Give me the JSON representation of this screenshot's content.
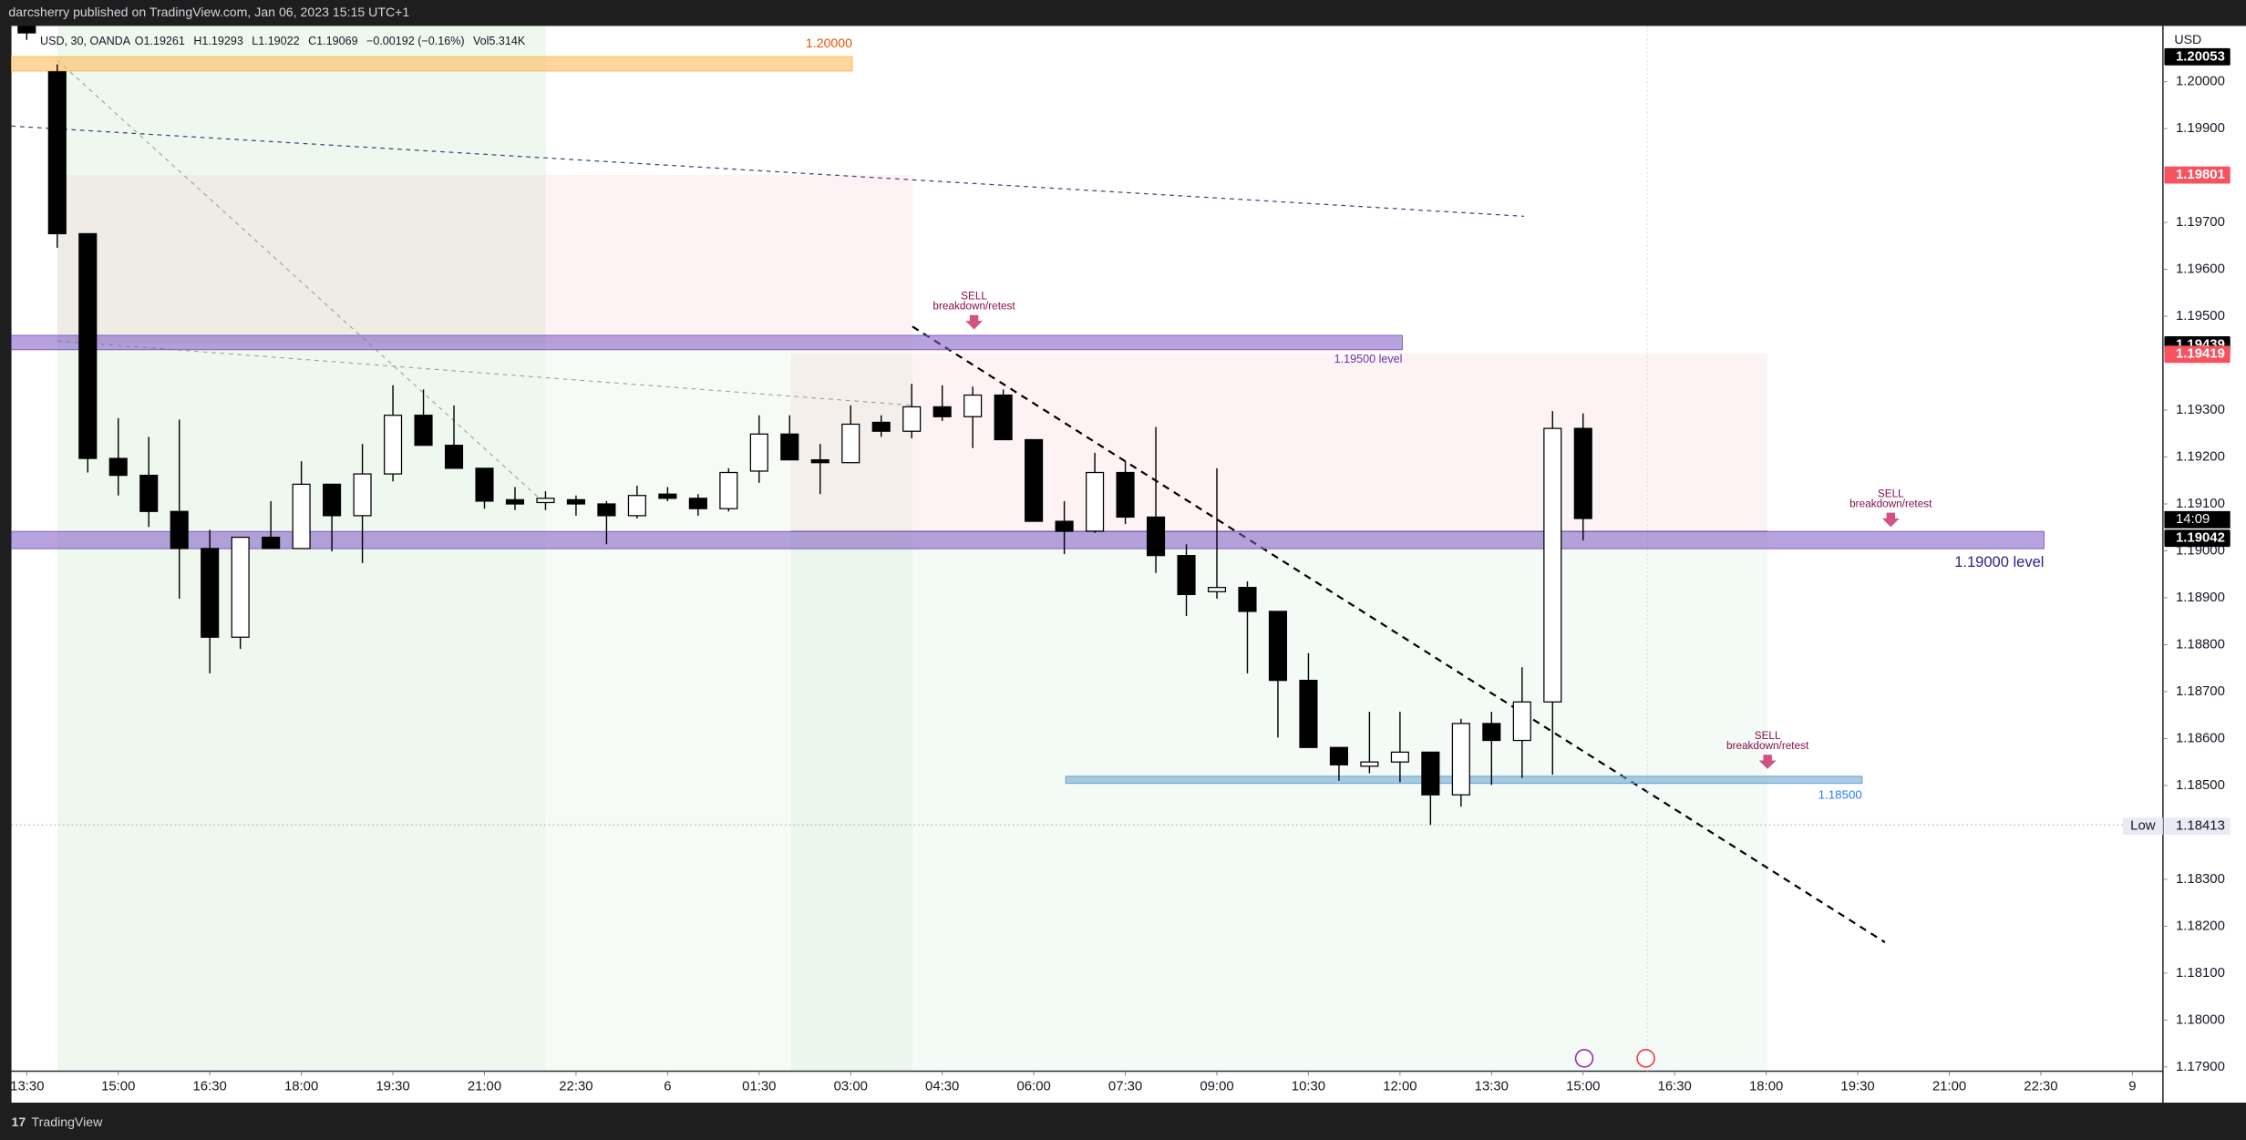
{
  "chart_data": {
    "type": "candlestick",
    "header": "darcsherry published on TradingView.com, Jan 06, 2023 15:15 UTC+1",
    "symbol_info": "USD, 30, OANDA",
    "ohlc_info": [
      "O1.19261",
      "H1.19293",
      "L1.19022",
      "C1.19069",
      "−0.00192 (−0.16%)",
      "Vol5.314K"
    ],
    "axis_unit": "USD",
    "brand": "TradingView",
    "up_color": "#ffffff",
    "down_color": "#000000",
    "grid": false,
    "open": [
      1.2015,
      1.20021,
      1.19676,
      1.19197,
      1.19161,
      1.19084,
      1.19005,
      1.18816,
      1.19029,
      1.19005,
      1.19142,
      1.19075,
      1.19164,
      1.19289,
      1.19225,
      1.19176,
      1.19109,
      1.19103,
      1.19109,
      1.191,
      1.19075,
      1.19121,
      1.19112,
      1.1909,
      1.1917,
      1.19249,
      1.19194,
      1.19188,
      1.19274,
      1.19255,
      1.19307,
      1.19286,
      1.19332,
      1.19237,
      1.19063,
      1.19042,
      1.19167,
      1.19072,
      1.1899,
      1.18913,
      1.18922,
      1.18871,
      1.18724,
      1.18581,
      1.18541,
      1.1855,
      1.18571,
      1.1848,
      1.18632,
      1.18596,
      1.18678,
      1.19261
    ],
    "high": [
      1.2016,
      1.20037,
      1.19676,
      1.19283,
      1.19243,
      1.1928,
      1.19045,
      1.19029,
      1.19106,
      1.19191,
      1.19142,
      1.19228,
      1.19353,
      1.19344,
      1.1931,
      1.19176,
      1.19136,
      1.19127,
      1.19118,
      1.19106,
      1.19139,
      1.19136,
      1.19121,
      1.19176,
      1.19289,
      1.19289,
      1.19228,
      1.1931,
      1.19289,
      1.19356,
      1.19353,
      1.1935,
      1.19344,
      1.19237,
      1.19106,
      1.19209,
      1.19191,
      1.19264,
      1.19014,
      1.19176,
      1.18935,
      1.18871,
      1.18782,
      1.18581,
      1.18657,
      1.18657,
      1.18571,
      1.18642,
      1.18657,
      1.18752,
      1.19298,
      1.19293
    ],
    "low": [
      1.20089,
      1.19646,
      1.19167,
      1.19118,
      1.19051,
      1.18898,
      1.18739,
      1.18791,
      1.19005,
      1.19005,
      1.18999,
      1.18974,
      1.19148,
      1.19225,
      1.19176,
      1.1909,
      1.19087,
      1.19087,
      1.19075,
      1.19014,
      1.19069,
      1.19106,
      1.19075,
      1.19084,
      1.19145,
      1.19194,
      1.19121,
      1.19188,
      1.19243,
      1.1924,
      1.19277,
      1.19219,
      1.19237,
      1.19063,
      1.18993,
      1.19038,
      1.19057,
      1.18953,
      1.18861,
      1.18898,
      1.18739,
      1.18602,
      1.18581,
      1.1851,
      1.18526,
      1.18507,
      1.18416,
      1.18455,
      1.18501,
      1.18516,
      1.18523,
      1.19022
    ],
    "close": [
      1.20104,
      1.19676,
      1.19197,
      1.19161,
      1.19084,
      1.19005,
      1.18816,
      1.19029,
      1.19005,
      1.19142,
      1.19075,
      1.19164,
      1.19289,
      1.19225,
      1.19176,
      1.19106,
      1.191,
      1.19112,
      1.191,
      1.19075,
      1.19118,
      1.19112,
      1.1909,
      1.19167,
      1.19249,
      1.19194,
      1.19188,
      1.1927,
      1.19255,
      1.19307,
      1.19286,
      1.19332,
      1.19237,
      1.19063,
      1.19042,
      1.19167,
      1.19072,
      1.1899,
      1.18907,
      1.18922,
      1.18871,
      1.18724,
      1.18581,
      1.18544,
      1.1855,
      1.18571,
      1.1848,
      1.18632,
      1.18596,
      1.18678,
      1.19261,
      1.19069
    ],
    "xlim": [
      -0.5,
      70
    ],
    "xticks": [
      {
        "value": 0,
        "label": "13:30"
      },
      {
        "value": 3,
        "label": "15:00"
      },
      {
        "value": 6,
        "label": "16:30"
      },
      {
        "value": 9,
        "label": "18:00"
      },
      {
        "value": 12,
        "label": "19:30"
      },
      {
        "value": 15,
        "label": "21:00"
      },
      {
        "value": 18,
        "label": "22:30"
      },
      {
        "value": 21,
        "label": "6"
      },
      {
        "value": 24,
        "label": "01:30"
      },
      {
        "value": 27,
        "label": "03:00"
      },
      {
        "value": 30,
        "label": "04:30"
      },
      {
        "value": 33,
        "label": "06:00"
      },
      {
        "value": 36,
        "label": "07:30"
      },
      {
        "value": 39,
        "label": "09:00"
      },
      {
        "value": 42,
        "label": "10:30"
      },
      {
        "value": 45,
        "label": "12:00"
      },
      {
        "value": 48,
        "label": "13:30"
      },
      {
        "value": 51,
        "label": "15:00"
      },
      {
        "value": 54,
        "label": "16:30"
      },
      {
        "value": 57,
        "label": "18:00"
      },
      {
        "value": 60,
        "label": "19:30"
      },
      {
        "value": 63,
        "label": "21:00"
      },
      {
        "value": 66,
        "label": "22:30"
      },
      {
        "value": 69,
        "label": "9"
      }
    ],
    "ylim": [
      1.17891,
      1.20119
    ],
    "yticks": [
      {
        "value": 1.2,
        "label": "1.20000"
      },
      {
        "value": 1.199,
        "label": "1.19900"
      },
      {
        "value": 1.197,
        "label": "1.19700"
      },
      {
        "value": 1.196,
        "label": "1.19600"
      },
      {
        "value": 1.195,
        "label": "1.19500"
      },
      {
        "value": 1.193,
        "label": "1.19300"
      },
      {
        "value": 1.192,
        "label": "1.19200"
      },
      {
        "value": 1.191,
        "label": "1.19100"
      },
      {
        "value": 1.19,
        "label": "1.19000"
      },
      {
        "value": 1.189,
        "label": "1.18900"
      },
      {
        "value": 1.188,
        "label": "1.18800"
      },
      {
        "value": 1.187,
        "label": "1.18700"
      },
      {
        "value": 1.186,
        "label": "1.18600"
      },
      {
        "value": 1.185,
        "label": "1.18500"
      },
      {
        "value": 1.183,
        "label": "1.18300"
      },
      {
        "value": 1.182,
        "label": "1.18200"
      },
      {
        "value": 1.181,
        "label": "1.18100"
      },
      {
        "value": 1.18,
        "label": "1.18000"
      },
      {
        "value": 1.179,
        "label": "1.17900"
      }
    ],
    "levels": [
      {
        "value": 1.20038,
        "label": "1.20000",
        "color": "#ffb74d"
      },
      {
        "value": 1.19444,
        "label": "1.19500 level",
        "color": "#7e57c2"
      },
      {
        "value": 1.19023,
        "label": "1.19000 level",
        "color": "#7e57c2"
      },
      {
        "value": 1.18512,
        "label": "1.18500",
        "color": "#64a0d0"
      }
    ],
    "price_markers": [
      {
        "value": 1.20053,
        "label": "1.20053",
        "color": "#000000"
      },
      {
        "value": 1.19801,
        "label": "1.19801",
        "color": "#f7525f"
      },
      {
        "value": 1.19439,
        "label": "1.19439",
        "color": "#000000"
      },
      {
        "value": 1.19419,
        "label": "1.19419",
        "color": "#f7525f"
      },
      {
        "value": 1.19042,
        "label": "1.19042",
        "color": "#000000"
      }
    ],
    "countdown": "14:09",
    "low_marker": {
      "value": 1.18413,
      "label": "1.18413",
      "text": "Low"
    },
    "annotations": [
      {
        "title": "SELL",
        "text": "breakdown/retest"
      },
      {
        "title": "SELL",
        "text": "breakdown/retest"
      },
      {
        "title": "SELL",
        "text": "breakdown/retest"
      }
    ]
  }
}
